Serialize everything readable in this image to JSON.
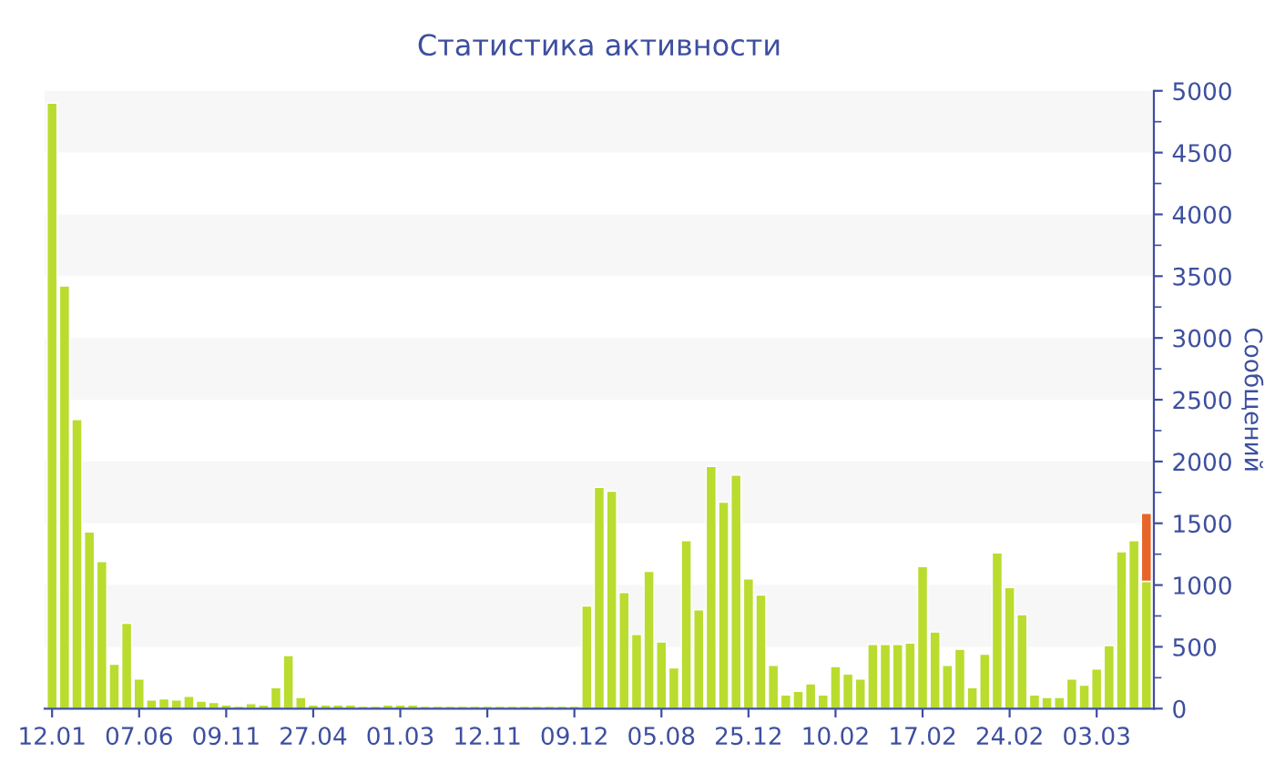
{
  "chart_data": {
    "type": "bar",
    "title": "Статистика активности",
    "ylabel": "Сообщений",
    "categories": [
      "12.01",
      null,
      null,
      null,
      null,
      null,
      null,
      "07.06",
      null,
      null,
      null,
      null,
      null,
      null,
      "09.11",
      null,
      null,
      null,
      null,
      null,
      null,
      "27.04",
      null,
      null,
      null,
      null,
      null,
      null,
      "01.03",
      null,
      null,
      null,
      null,
      null,
      null,
      "12.11",
      null,
      null,
      null,
      null,
      null,
      null,
      "09.12",
      null,
      null,
      null,
      null,
      null,
      null,
      "05.08",
      null,
      null,
      null,
      null,
      null,
      null,
      "25.12",
      null,
      null,
      null,
      null,
      null,
      null,
      "10.02",
      null,
      null,
      null,
      null,
      null,
      null,
      "17.02",
      null,
      null,
      null,
      null,
      null,
      null,
      "24.02",
      null,
      null,
      null,
      null,
      null,
      null,
      "03.03",
      null,
      null,
      null,
      null
    ],
    "stacked": true,
    "series": [
      {
        "color": "#b9dc2f",
        "values": [
          4900,
          3420,
          2340,
          1430,
          1190,
          360,
          690,
          240,
          70,
          80,
          70,
          100,
          60,
          50,
          30,
          20,
          40,
          30,
          170,
          430,
          90,
          30,
          30,
          30,
          30,
          20,
          20,
          30,
          30,
          30,
          20,
          20,
          20,
          20,
          20,
          20,
          20,
          20,
          20,
          20,
          20,
          20,
          20,
          830,
          1790,
          1760,
          940,
          600,
          1110,
          540,
          330,
          1360,
          800,
          1960,
          1670,
          1890,
          1050,
          920,
          350,
          110,
          140,
          200,
          110,
          340,
          280,
          240,
          520,
          520,
          520,
          530,
          1150,
          620,
          350,
          480,
          170,
          440,
          1260,
          980,
          760,
          110,
          90,
          90,
          240,
          190,
          320,
          510,
          1270,
          1360,
          1030
        ]
      },
      {
        "color": "#e8652a",
        "values": [
          null,
          null,
          null,
          null,
          null,
          null,
          null,
          null,
          null,
          null,
          null,
          null,
          null,
          null,
          null,
          null,
          null,
          null,
          null,
          null,
          null,
          null,
          null,
          null,
          null,
          null,
          null,
          null,
          null,
          null,
          null,
          null,
          null,
          null,
          null,
          null,
          null,
          null,
          null,
          null,
          null,
          null,
          null,
          null,
          null,
          null,
          null,
          null,
          null,
          null,
          null,
          null,
          null,
          null,
          null,
          null,
          null,
          null,
          null,
          null,
          null,
          null,
          null,
          null,
          null,
          null,
          null,
          null,
          null,
          null,
          null,
          null,
          null,
          null,
          null,
          null,
          null,
          null,
          null,
          null,
          null,
          null,
          null,
          null,
          null,
          null,
          null,
          null,
          550
        ]
      }
    ],
    "ylim": [
      0,
      5000
    ],
    "yticks": [
      0,
      500,
      1000,
      1500,
      2000,
      2500,
      3000,
      3500,
      4000,
      4500,
      5000
    ],
    "bands": [
      {
        "axis": "y",
        "from": 500,
        "to": 1000,
        "color": "#f7f7f7"
      },
      {
        "axis": "y",
        "from": 1500,
        "to": 2000,
        "color": "#f7f7f7"
      },
      {
        "axis": "y",
        "from": 2500,
        "to": 3000,
        "color": "#f7f7f7"
      },
      {
        "axis": "y",
        "from": 3500,
        "to": 4000,
        "color": "#f7f7f7"
      },
      {
        "axis": "y",
        "from": 4500,
        "to": 5000,
        "color": "#f7f7f7"
      }
    ],
    "grid": false
  }
}
